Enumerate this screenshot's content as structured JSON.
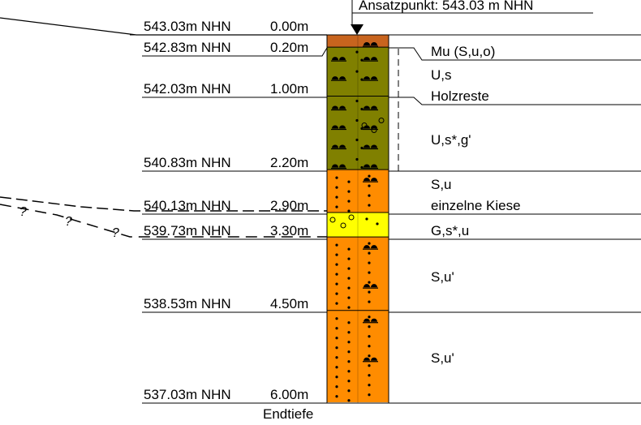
{
  "header": {
    "start_point": "Ansatzpunkt: 543.03 m NHN"
  },
  "footer": {
    "end_label": "Endtiefe"
  },
  "layers": [
    {
      "elev": "543.03m NHN",
      "depth": "0.00m",
      "top_m": 0.0,
      "bottom_m": 0.2,
      "color": "#c8641e",
      "pattern": "topsoil",
      "desc": [
        "Mu (S,u,o)"
      ]
    },
    {
      "elev": "542.83m NHN",
      "depth": "0.20m",
      "top_m": 0.2,
      "bottom_m": 1.0,
      "color": "#808000",
      "pattern": "silt",
      "desc": [
        "U,s",
        "Holzreste"
      ]
    },
    {
      "elev": "542.03m NHN",
      "depth": "1.00m",
      "top_m": 1.0,
      "bottom_m": 2.2,
      "color": "#808000",
      "pattern": "silt-gravel",
      "desc": [
        "U,s*,g'"
      ]
    },
    {
      "elev": "540.83m NHN",
      "depth": "2.20m",
      "top_m": 2.2,
      "bottom_m": 2.9,
      "color": "#ff8c00",
      "pattern": "sand",
      "desc": [
        "S,u",
        "einzelne Kiese"
      ]
    },
    {
      "elev": "540.13m NHN",
      "depth": "2.90m",
      "top_m": 2.9,
      "bottom_m": 3.3,
      "color": "#ffff00",
      "pattern": "gravel",
      "desc": [
        "G,s*,u"
      ]
    },
    {
      "elev": "539.73m NHN",
      "depth": "3.30m",
      "top_m": 3.3,
      "bottom_m": 4.5,
      "color": "#ff8c00",
      "pattern": "sand",
      "desc": [
        "S,u'"
      ]
    },
    {
      "elev": "538.53m NHN",
      "depth": "4.50m",
      "top_m": 4.5,
      "bottom_m": 6.0,
      "color": "#ff8c00",
      "pattern": "sand",
      "desc": [
        "S,u'"
      ]
    }
  ],
  "bottom": {
    "elev": "537.03m NHN",
    "depth": "6.00m"
  },
  "question_mark": "?",
  "colors": {
    "line": "#000000"
  }
}
